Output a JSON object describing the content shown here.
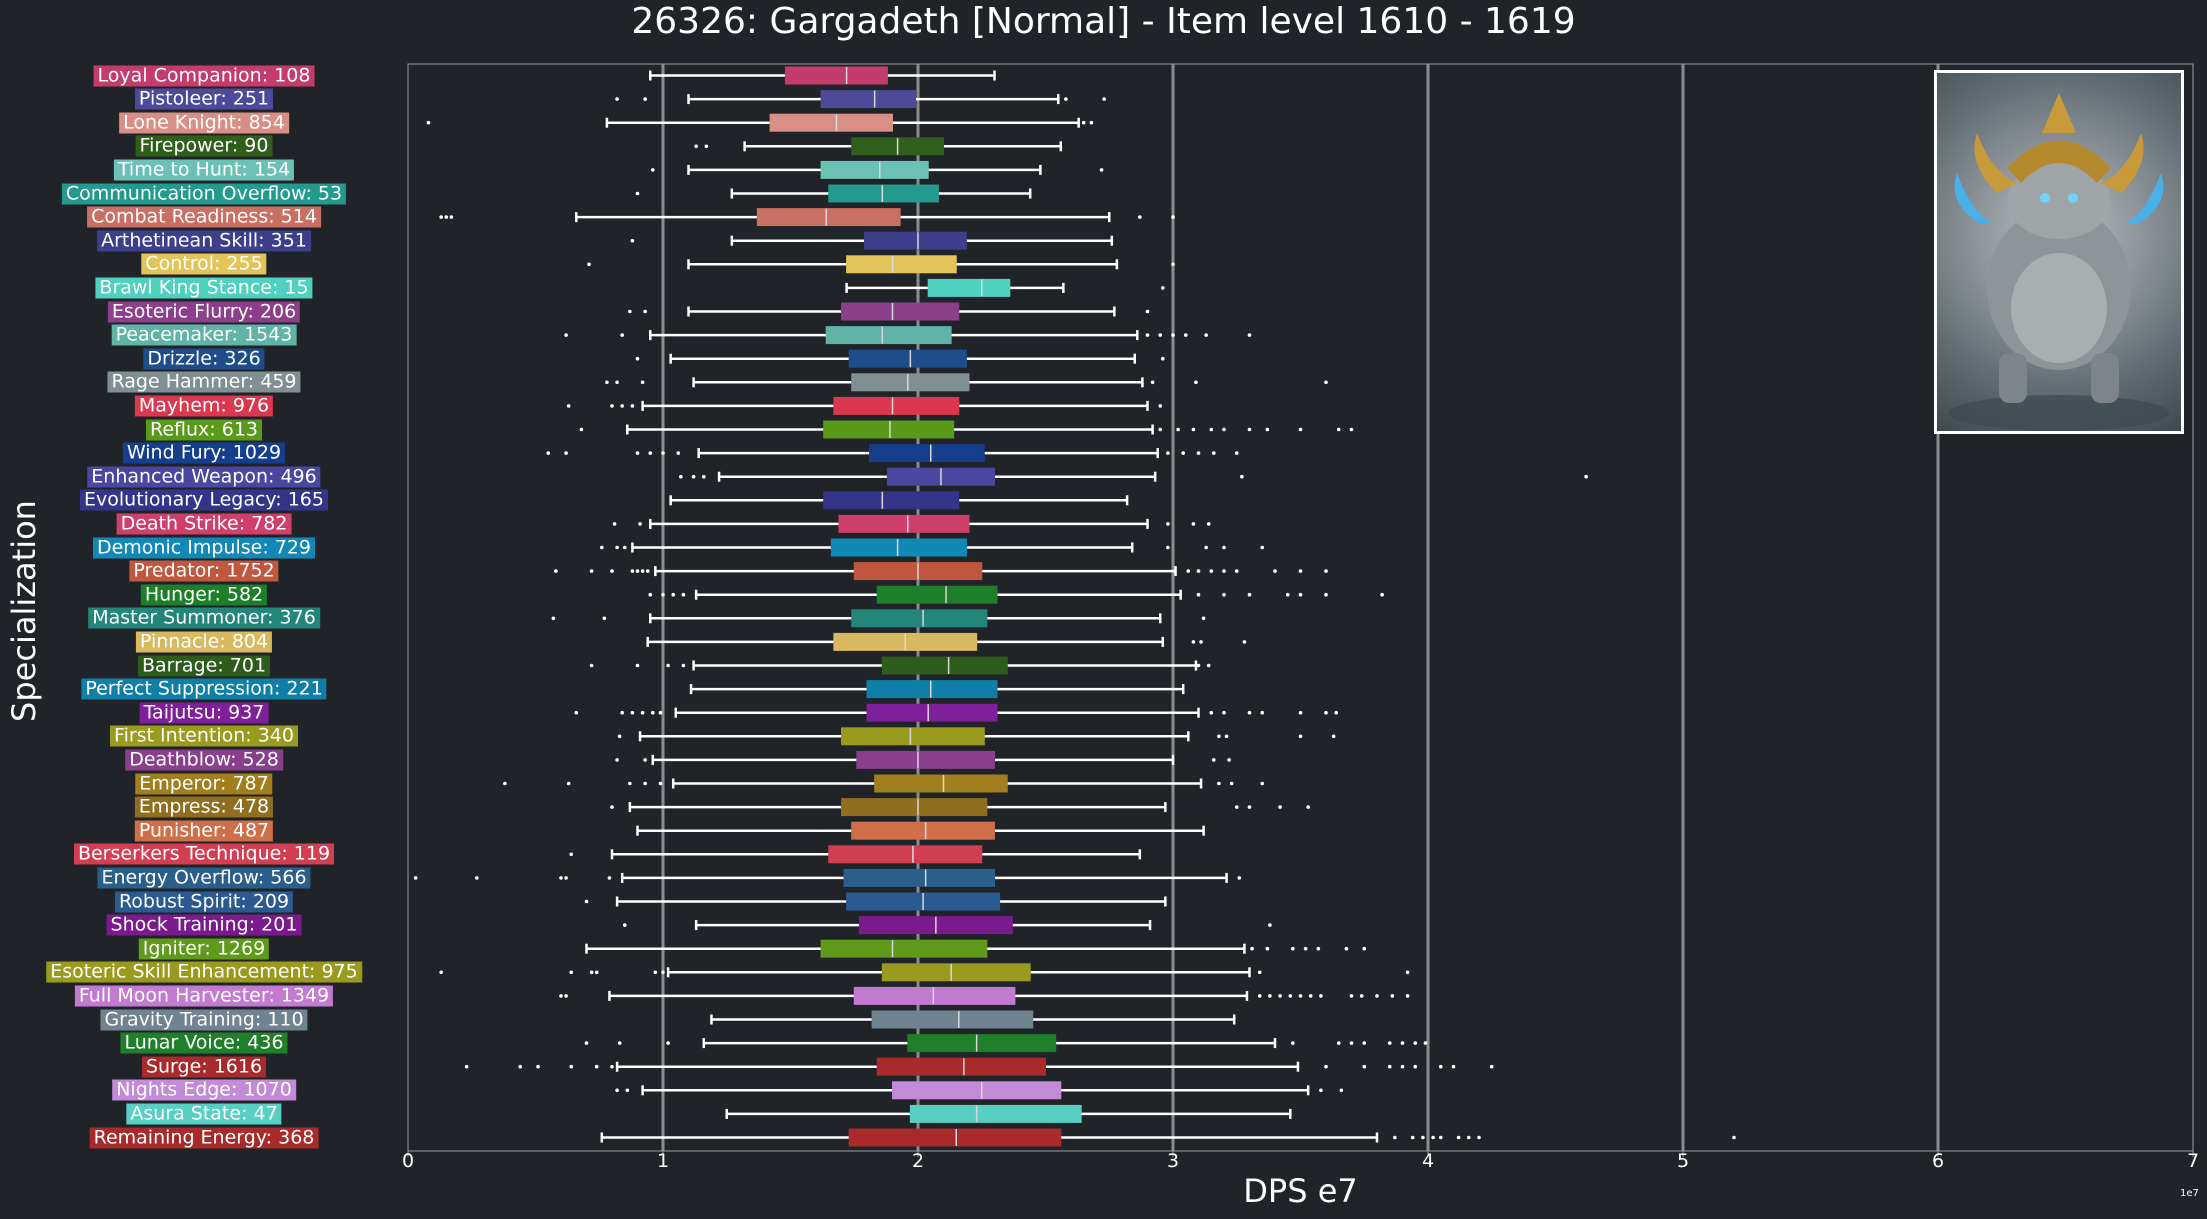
{
  "chart_data": {
    "type": "boxplot",
    "title": "26326: Gargadeth [Normal] - Item level 1610 - 1619",
    "xlabel": "DPS e7",
    "ylabel": "Specialization",
    "x_offset_label": "1e7",
    "xlim": [
      0,
      7
    ],
    "xticks": [
      "0",
      "1",
      "2",
      "3",
      "4",
      "5",
      "6",
      "7"
    ],
    "grid": "vertical",
    "series": [
      {
        "label": "Loyal Companion: 108",
        "color": "#c43c6c",
        "whislo": 0.95,
        "q1": 1.48,
        "med": 1.72,
        "q3": 1.88,
        "whishi": 2.3,
        "fliers": []
      },
      {
        "label": "Pistoleer: 251",
        "color": "#4d4a9a",
        "whislo": 1.1,
        "q1": 1.62,
        "med": 1.83,
        "q3": 1.99,
        "whishi": 2.55,
        "fliers": [
          0.82,
          0.93,
          2.58,
          2.73
        ]
      },
      {
        "label": "Lone Knight: 854",
        "color": "#d98f85",
        "whislo": 0.78,
        "q1": 1.42,
        "med": 1.68,
        "q3": 1.9,
        "whishi": 2.63,
        "fliers": [
          0.08,
          2.65,
          2.68
        ]
      },
      {
        "label": "Firepower: 90",
        "color": "#2f5f1a",
        "whislo": 1.32,
        "q1": 1.74,
        "med": 1.92,
        "q3": 2.1,
        "whishi": 2.56,
        "fliers": [
          1.13,
          1.17
        ]
      },
      {
        "label": "Time to Hunt: 154",
        "color": "#6cc1b6",
        "whislo": 1.1,
        "q1": 1.62,
        "med": 1.85,
        "q3": 2.04,
        "whishi": 2.48,
        "fliers": [
          0.96,
          2.72
        ]
      },
      {
        "label": "Communication Overflow: 53",
        "color": "#229a8d",
        "whislo": 1.27,
        "q1": 1.65,
        "med": 1.86,
        "q3": 2.08,
        "whishi": 2.44,
        "fliers": [
          0.9
        ]
      },
      {
        "label": "Combat Readiness: 514",
        "color": "#c96f63",
        "whislo": 0.66,
        "q1": 1.37,
        "med": 1.64,
        "q3": 1.93,
        "whishi": 2.75,
        "fliers": [
          0.13,
          0.15,
          0.17,
          2.87,
          3.0
        ]
      },
      {
        "label": "Arthetinean Skill: 351",
        "color": "#3d3f8c",
        "whislo": 1.27,
        "q1": 1.79,
        "med": 2.0,
        "q3": 2.19,
        "whishi": 2.76,
        "fliers": [
          0.88
        ]
      },
      {
        "label": "Control: 255",
        "color": "#e3c45a",
        "whislo": 1.1,
        "q1": 1.72,
        "med": 1.9,
        "q3": 2.15,
        "whishi": 2.78,
        "fliers": [
          0.71,
          3.0
        ]
      },
      {
        "label": "Brawl King Stance: 15",
        "color": "#4fd1c0",
        "whislo": 1.72,
        "q1": 2.04,
        "med": 2.25,
        "q3": 2.36,
        "whishi": 2.57,
        "fliers": [
          2.96
        ]
      },
      {
        "label": "Esoteric Flurry: 206",
        "color": "#8c3f8a",
        "whislo": 1.1,
        "q1": 1.7,
        "med": 1.9,
        "q3": 2.16,
        "whishi": 2.77,
        "fliers": [
          0.87,
          0.93,
          2.9
        ]
      },
      {
        "label": "Peacemaker: 1543",
        "color": "#5fb3a7",
        "whislo": 0.95,
        "q1": 1.64,
        "med": 1.86,
        "q3": 2.13,
        "whishi": 2.86,
        "fliers": [
          0.62,
          0.84,
          2.9,
          2.95,
          3.0,
          3.05,
          3.13,
          3.3
        ]
      },
      {
        "label": "Drizzle: 326",
        "color": "#1f4d8c",
        "whislo": 1.03,
        "q1": 1.73,
        "med": 1.97,
        "q3": 2.19,
        "whishi": 2.85,
        "fliers": [
          0.9,
          2.96
        ]
      },
      {
        "label": "Rage Hammer: 459",
        "color": "#7f8f94",
        "whislo": 1.12,
        "q1": 1.74,
        "med": 1.96,
        "q3": 2.2,
        "whishi": 2.88,
        "fliers": [
          0.78,
          0.82,
          0.92,
          2.92,
          3.09,
          3.6
        ]
      },
      {
        "label": "Mayhem: 976",
        "color": "#d9384f",
        "whislo": 0.92,
        "q1": 1.67,
        "med": 1.9,
        "q3": 2.16,
        "whishi": 2.9,
        "fliers": [
          0.63,
          0.8,
          0.84,
          0.88,
          2.95
        ]
      },
      {
        "label": "Reflux: 613",
        "color": "#5a9a1a",
        "whislo": 0.86,
        "q1": 1.63,
        "med": 1.89,
        "q3": 2.14,
        "whishi": 2.92,
        "fliers": [
          0.68,
          2.95,
          3.02,
          3.08,
          3.15,
          3.2,
          3.3,
          3.37,
          3.5,
          3.65,
          3.7
        ]
      },
      {
        "label": "Wind Fury: 1029",
        "color": "#153f8c",
        "whislo": 1.14,
        "q1": 1.81,
        "med": 2.05,
        "q3": 2.26,
        "whishi": 2.94,
        "fliers": [
          0.55,
          0.62,
          0.9,
          0.95,
          1.0,
          1.06,
          2.98,
          3.04,
          3.1,
          3.16,
          3.25
        ]
      },
      {
        "label": "Enhanced Weapon: 496",
        "color": "#4a47a0",
        "whislo": 1.22,
        "q1": 1.88,
        "med": 2.09,
        "q3": 2.3,
        "whishi": 2.93,
        "fliers": [
          1.07,
          1.12,
          1.16,
          3.27,
          4.62
        ]
      },
      {
        "label": "Evolutionary Legacy: 165",
        "color": "#33358a",
        "whislo": 1.03,
        "q1": 1.63,
        "med": 1.86,
        "q3": 2.16,
        "whishi": 2.82,
        "fliers": []
      },
      {
        "label": "Death Strike: 782",
        "color": "#cf3f6c",
        "whislo": 0.95,
        "q1": 1.69,
        "med": 1.96,
        "q3": 2.2,
        "whishi": 2.9,
        "fliers": [
          0.81,
          0.91,
          2.98,
          3.08,
          3.14
        ]
      },
      {
        "label": "Demonic Impulse: 729",
        "color": "#1288b8",
        "whislo": 0.88,
        "q1": 1.66,
        "med": 1.92,
        "q3": 2.19,
        "whishi": 2.84,
        "fliers": [
          0.76,
          0.82,
          0.85,
          2.98,
          3.13,
          3.2,
          3.35
        ]
      },
      {
        "label": "Predator: 1752",
        "color": "#c0573f",
        "whislo": 0.97,
        "q1": 1.75,
        "med": 2.0,
        "q3": 2.25,
        "whishi": 3.01,
        "fliers": [
          0.58,
          0.72,
          0.8,
          0.88,
          0.9,
          0.92,
          0.94,
          3.06,
          3.1,
          3.15,
          3.2,
          3.25,
          3.4,
          3.5,
          3.6
        ]
      },
      {
        "label": "Hunger: 582",
        "color": "#1d7f2a",
        "whislo": 1.13,
        "q1": 1.84,
        "med": 2.11,
        "q3": 2.31,
        "whishi": 3.03,
        "fliers": [
          0.95,
          1.0,
          1.04,
          1.08,
          3.1,
          3.2,
          3.3,
          3.45,
          3.5,
          3.6,
          3.82
        ]
      },
      {
        "label": "Master Summoner: 376",
        "color": "#22877a",
        "whislo": 0.95,
        "q1": 1.74,
        "med": 2.02,
        "q3": 2.27,
        "whishi": 2.95,
        "fliers": [
          0.57,
          0.77,
          3.12
        ]
      },
      {
        "label": "Pinnacle: 804",
        "color": "#d9b95f",
        "whislo": 0.94,
        "q1": 1.67,
        "med": 1.95,
        "q3": 2.23,
        "whishi": 2.96,
        "fliers": [
          3.08,
          3.11,
          3.28
        ]
      },
      {
        "label": "Barrage: 701",
        "color": "#2e5c1d",
        "whislo": 1.12,
        "q1": 1.86,
        "med": 2.12,
        "q3": 2.35,
        "whishi": 3.09,
        "fliers": [
          0.72,
          0.9,
          1.02,
          1.08,
          3.1,
          3.14
        ]
      },
      {
        "label": "Perfect Suppression: 221",
        "color": "#0f7fa8",
        "whislo": 1.11,
        "q1": 1.8,
        "med": 2.05,
        "q3": 2.31,
        "whishi": 3.04,
        "fliers": []
      },
      {
        "label": "Taijutsu: 937",
        "color": "#7f1f9a",
        "whislo": 1.05,
        "q1": 1.8,
        "med": 2.04,
        "q3": 2.31,
        "whishi": 3.1,
        "fliers": [
          0.66,
          0.84,
          0.88,
          0.92,
          0.96,
          0.99,
          3.15,
          3.2,
          3.3,
          3.35,
          3.5,
          3.6,
          3.64
        ]
      },
      {
        "label": "First Intention: 340",
        "color": "#9a9a1f",
        "whislo": 0.91,
        "q1": 1.7,
        "med": 1.97,
        "q3": 2.26,
        "whishi": 3.06,
        "fliers": [
          0.83,
          3.18,
          3.21,
          3.5,
          3.63
        ]
      },
      {
        "label": "Deathblow: 528",
        "color": "#8a3f8c",
        "whislo": 0.96,
        "q1": 1.76,
        "med": 2.0,
        "q3": 2.3,
        "whishi": 3.0,
        "fliers": [
          0.82,
          0.93,
          3.16,
          3.22
        ]
      },
      {
        "label": "Emperor: 787",
        "color": "#a17f1f",
        "whislo": 1.04,
        "q1": 1.83,
        "med": 2.1,
        "q3": 2.35,
        "whishi": 3.11,
        "fliers": [
          0.38,
          0.63,
          0.87,
          0.93,
          0.99,
          3.18,
          3.23,
          3.35
        ]
      },
      {
        "label": "Empress: 478",
        "color": "#8f6f1f",
        "whislo": 0.87,
        "q1": 1.7,
        "med": 2.0,
        "q3": 2.27,
        "whishi": 2.97,
        "fliers": [
          0.8,
          3.25,
          3.3,
          3.42,
          3.53
        ]
      },
      {
        "label": "Punisher: 487",
        "color": "#cf6f4a",
        "whislo": 0.9,
        "q1": 1.74,
        "med": 2.03,
        "q3": 2.3,
        "whishi": 3.12,
        "fliers": []
      },
      {
        "label": "Berserkers Technique: 119",
        "color": "#d33f52",
        "whislo": 0.8,
        "q1": 1.65,
        "med": 1.98,
        "q3": 2.25,
        "whishi": 2.87,
        "fliers": [
          0.64
        ]
      },
      {
        "label": "Energy Overflow: 566",
        "color": "#2a5f8c",
        "whislo": 0.84,
        "q1": 1.71,
        "med": 2.03,
        "q3": 2.3,
        "whishi": 3.21,
        "fliers": [
          0.03,
          0.27,
          0.6,
          0.62,
          0.79,
          3.26
        ]
      },
      {
        "label": "Robust Spirit: 209",
        "color": "#2a5a8f",
        "whislo": 0.82,
        "q1": 1.72,
        "med": 2.02,
        "q3": 2.32,
        "whishi": 2.97,
        "fliers": [
          0.7
        ]
      },
      {
        "label": "Shock Training: 201",
        "color": "#7a1a8c",
        "whislo": 1.13,
        "q1": 1.77,
        "med": 2.07,
        "q3": 2.37,
        "whishi": 2.91,
        "fliers": [
          0.85,
          3.38
        ]
      },
      {
        "label": "Igniter: 1269",
        "color": "#5f9a1a",
        "whislo": 0.7,
        "q1": 1.62,
        "med": 1.9,
        "q3": 2.27,
        "whishi": 3.28,
        "fliers": [
          3.31,
          3.37,
          3.47,
          3.52,
          3.57,
          3.68,
          3.75
        ]
      },
      {
        "label": "Esoteric Skill Enhancement: 975",
        "color": "#9a9a1f",
        "whislo": 1.02,
        "q1": 1.86,
        "med": 2.13,
        "q3": 2.44,
        "whishi": 3.3,
        "fliers": [
          0.13,
          0.64,
          0.72,
          0.74,
          0.97,
          1.0,
          3.34,
          3.92
        ]
      },
      {
        "label": "Full Moon Harvester: 1349",
        "color": "#c37bd1",
        "whislo": 0.79,
        "q1": 1.75,
        "med": 2.06,
        "q3": 2.38,
        "whishi": 3.29,
        "fliers": [
          0.6,
          0.62,
          3.34,
          3.38,
          3.42,
          3.46,
          3.5,
          3.54,
          3.58,
          3.7,
          3.74,
          3.8,
          3.86,
          3.92
        ]
      },
      {
        "label": "Gravity Training: 110",
        "color": "#6f8390",
        "whislo": 1.19,
        "q1": 1.82,
        "med": 2.16,
        "q3": 2.45,
        "whishi": 3.24,
        "fliers": []
      },
      {
        "label": "Lunar Voice: 436",
        "color": "#1f7f2a",
        "whislo": 1.16,
        "q1": 1.96,
        "med": 2.23,
        "q3": 2.54,
        "whishi": 3.4,
        "fliers": [
          0.7,
          0.83,
          1.02,
          3.47,
          3.65,
          3.7,
          3.75,
          3.85,
          3.9,
          3.95,
          3.99
        ]
      },
      {
        "label": "Surge: 1616",
        "color": "#a82a2a",
        "whislo": 0.82,
        "q1": 1.84,
        "med": 2.18,
        "q3": 2.5,
        "whishi": 3.49,
        "fliers": [
          0.23,
          0.44,
          0.51,
          0.64,
          0.74,
          0.8,
          3.6,
          3.75,
          3.85,
          3.9,
          3.95,
          4.05,
          4.1,
          4.25
        ]
      },
      {
        "label": "Nights Edge: 1070",
        "color": "#c38ad8",
        "whislo": 0.92,
        "q1": 1.9,
        "med": 2.25,
        "q3": 2.56,
        "whishi": 3.53,
        "fliers": [
          0.82,
          0.86,
          3.58,
          3.66
        ]
      },
      {
        "label": "Asura State: 47",
        "color": "#57cfc2",
        "whislo": 1.25,
        "q1": 1.97,
        "med": 2.23,
        "q3": 2.64,
        "whishi": 3.46,
        "fliers": []
      },
      {
        "label": "Remaining Energy: 368",
        "color": "#a82a2a",
        "whislo": 0.76,
        "q1": 1.73,
        "med": 2.15,
        "q3": 2.56,
        "whishi": 3.8,
        "fliers": [
          3.87,
          3.94,
          3.98,
          4.02,
          4.05,
          4.12,
          4.16,
          4.2,
          5.2
        ]
      }
    ]
  },
  "portrait": {
    "icon": "boss-portrait-icon",
    "border_color": "#ffffff"
  },
  "colors": {
    "background": "#202328",
    "grid": "#8a8c8f",
    "whisker": "#ffffff",
    "flier": "#ffffff"
  }
}
